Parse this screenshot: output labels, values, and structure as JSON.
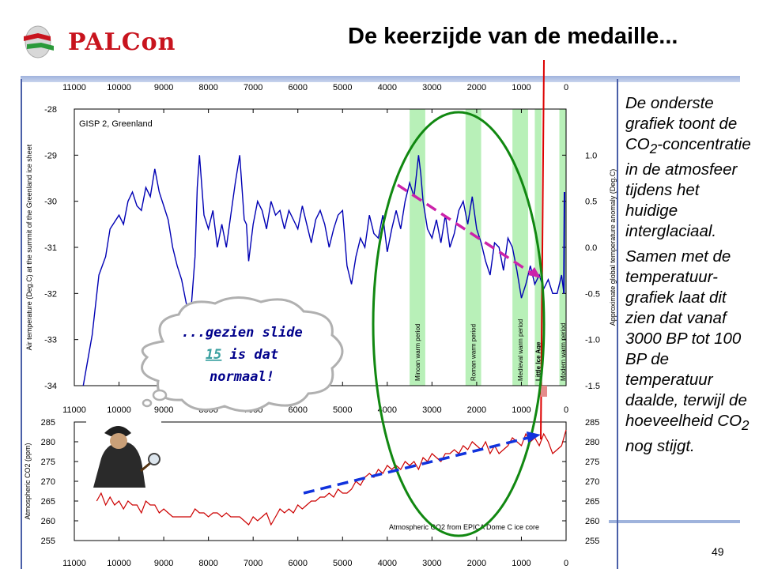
{
  "header": {
    "logo_text": "PALCon",
    "title": "De keerzijde van de medaille...",
    "page_number": "49"
  },
  "sidebar": {
    "para1_a": "De onderste grafiek toont de CO",
    "para1_sub": "2",
    "para1_b": "-concentratie in de atmosfeer tijdens het huidige interglaciaal.",
    "para2_a": "Samen met de temperatuur-grafiek laat dit zien dat vanaf 3000 BP tot 100 BP de temperatuur daalde, terwijl de hoeveelheid CO",
    "para2_sub": "2",
    "para2_b": " nog stijgt."
  },
  "cloud": {
    "line1": "...gezien slide",
    "link": "15",
    "line2_after": " is dat",
    "line3": "normaal!"
  },
  "colors": {
    "temperature_line": "#0000b4",
    "co2_line": "#cc0000",
    "warm_period_band": "#b8f0b8",
    "ellipse": "#118811",
    "temp_trend_arrow": "#cc22aa",
    "co2_trend_arrow": "#1133dd",
    "present_marker": "#dd0000"
  },
  "chart_data": [
    {
      "type": "line",
      "title": "GISP 2, Greenland",
      "xlabel": "",
      "ylabel": "Air temperature (Deg.C) at the summit of the Greenland ice sheet",
      "y2label": "Approximate global temperature anomaly (Deg.C)",
      "xlim": [
        11000,
        0
      ],
      "ylim": [
        -34,
        -28
      ],
      "y2lim": [
        -1.5,
        1.5
      ],
      "x_ticks": [
        11000,
        10000,
        9000,
        8000,
        7000,
        6000,
        5000,
        4000,
        3000,
        2000,
        1000,
        0
      ],
      "y_ticks": [
        -28,
        -29,
        -30,
        -31,
        -32,
        -33,
        -34
      ],
      "y2_ticks": [
        1.0,
        0.5,
        0.0,
        -0.5,
        -1.0,
        -1.5
      ],
      "y2_tick_labels": [
        "1.0",
        "0.5",
        "0.0",
        "-0.5",
        "-1.0",
        "-1.5"
      ],
      "grid": false,
      "bands": [
        {
          "label": "Minoan warm period",
          "from": 3500,
          "to": 3150
        },
        {
          "label": "Roman warm period",
          "from": 2250,
          "to": 1900
        },
        {
          "label": "Medieval warm period",
          "from": 1200,
          "to": 850
        },
        {
          "label": "Little Ice Age",
          "from": 700,
          "to": 550
        },
        {
          "label": "Modern warm period",
          "from": 150,
          "to": 0
        }
      ],
      "series": [
        {
          "x": [
            10800,
            10600,
            10450,
            10300,
            10200,
            10000,
            9900,
            9800,
            9700,
            9600,
            9500,
            9400,
            9300,
            9200,
            9100,
            9000,
            8900,
            8800,
            8700,
            8600,
            8500,
            8400,
            8300,
            8250,
            8200,
            8100,
            8000,
            7900,
            7800,
            7700,
            7600,
            7500,
            7400,
            7300,
            7200,
            7150,
            7100,
            7000,
            6900,
            6800,
            6700,
            6600,
            6500,
            6400,
            6300,
            6200,
            6100,
            6000,
            5900,
            5800,
            5700,
            5600,
            5500,
            5400,
            5300,
            5200,
            5100,
            5000,
            4900,
            4800,
            4700,
            4600,
            4500,
            4400,
            4300,
            4200,
            4100,
            4000,
            3900,
            3800,
            3700,
            3600,
            3500,
            3400,
            3300,
            3250,
            3200,
            3100,
            3000,
            2900,
            2800,
            2700,
            2600,
            2500,
            2400,
            2300,
            2200,
            2100,
            2000,
            1900,
            1800,
            1700,
            1600,
            1500,
            1400,
            1300,
            1200,
            1100,
            1000,
            900,
            800,
            700,
            600,
            500,
            400,
            300,
            200,
            100,
            50
          ],
          "y": [
            -34.0,
            -32.9,
            -31.6,
            -31.2,
            -30.6,
            -30.3,
            -30.5,
            -30.0,
            -29.8,
            -30.1,
            -30.2,
            -29.7,
            -29.9,
            -29.3,
            -29.8,
            -30.1,
            -30.4,
            -31.0,
            -31.4,
            -31.7,
            -32.2,
            -32.5,
            -31.2,
            -29.7,
            -29.0,
            -30.3,
            -30.6,
            -30.2,
            -31.0,
            -30.5,
            -31.0,
            -30.3,
            -29.6,
            -29.0,
            -30.4,
            -30.5,
            -31.3,
            -30.5,
            -30.0,
            -30.2,
            -30.6,
            -30.0,
            -30.3,
            -30.2,
            -30.6,
            -30.2,
            -30.4,
            -30.6,
            -30.1,
            -30.5,
            -30.9,
            -30.4,
            -30.2,
            -30.5,
            -31.0,
            -30.6,
            -30.3,
            -30.2,
            -31.4,
            -31.8,
            -31.2,
            -30.8,
            -31.0,
            -30.3,
            -30.7,
            -30.8,
            -30.3,
            -31.1,
            -30.6,
            -30.2,
            -30.6,
            -30.0,
            -29.6,
            -29.9,
            -29.0,
            -29.4,
            -30.0,
            -30.6,
            -30.8,
            -30.4,
            -30.9,
            -30.3,
            -31.0,
            -30.7,
            -30.2,
            -30.0,
            -30.5,
            -29.9,
            -30.6,
            -30.9,
            -31.3,
            -31.6,
            -30.9,
            -31.0,
            -31.5,
            -30.8,
            -31.0,
            -31.5,
            -32.1,
            -31.8,
            -31.4,
            -31.8,
            -31.6,
            -31.9,
            -31.7,
            -32.0,
            -32.0,
            -31.6,
            -32.0
          ]
        }
      ]
    },
    {
      "type": "line",
      "title": "",
      "annotation": "Atmospheric CO2 from EPICA Dome C ice core",
      "xlabel": "",
      "ylabel": "Atmospheric CO2 (ppm)",
      "xlim": [
        11000,
        0
      ],
      "ylim": [
        255,
        285
      ],
      "x_ticks": [
        11000,
        10000,
        9000,
        8000,
        7000,
        6000,
        5000,
        4000,
        3000,
        2000,
        1000,
        0
      ],
      "y_ticks": [
        285,
        280,
        275,
        270,
        265,
        260,
        255
      ],
      "grid": false,
      "series": [
        {
          "x": [
            10500,
            10400,
            10300,
            10200,
            10100,
            10000,
            9900,
            9800,
            9700,
            9600,
            9500,
            9400,
            9300,
            9200,
            9100,
            9000,
            8900,
            8800,
            8700,
            8600,
            8500,
            8400,
            8300,
            8200,
            8100,
            8000,
            7900,
            7800,
            7700,
            7600,
            7500,
            7400,
            7300,
            7200,
            7100,
            7000,
            6900,
            6800,
            6700,
            6600,
            6500,
            6400,
            6300,
            6200,
            6100,
            6000,
            5900,
            5800,
            5700,
            5600,
            5500,
            5400,
            5300,
            5200,
            5100,
            5000,
            4900,
            4800,
            4700,
            4600,
            4500,
            4400,
            4300,
            4200,
            4100,
            4000,
            3900,
            3800,
            3700,
            3600,
            3500,
            3400,
            3300,
            3200,
            3100,
            3000,
            2900,
            2800,
            2700,
            2600,
            2500,
            2400,
            2300,
            2200,
            2100,
            2000,
            1900,
            1800,
            1700,
            1600,
            1500,
            1400,
            1300,
            1200,
            1100,
            1000,
            900,
            800,
            700,
            600,
            500,
            400,
            300,
            200,
            100,
            0
          ],
          "y": [
            265,
            267,
            264,
            266,
            264,
            265,
            263,
            265,
            264,
            264,
            262,
            265,
            264,
            264,
            262,
            263,
            262,
            261,
            261,
            261,
            261,
            261,
            263,
            262,
            262,
            261,
            262,
            262,
            261,
            262,
            261,
            261,
            261,
            260,
            259,
            261,
            260,
            261,
            262,
            259,
            261,
            263,
            262,
            263,
            262,
            264,
            263,
            264,
            265,
            265,
            266,
            266,
            267,
            266,
            268,
            267,
            267,
            268,
            270,
            269,
            271,
            272,
            271,
            273,
            272,
            274,
            273,
            274,
            273,
            275,
            274,
            275,
            273,
            276,
            275,
            277,
            276,
            275,
            277,
            277,
            278,
            277,
            279,
            278,
            280,
            279,
            278,
            280,
            277,
            279,
            277,
            278,
            279,
            281,
            280,
            279,
            282,
            280,
            281,
            279,
            282,
            280,
            277,
            278,
            279,
            283
          ]
        }
      ]
    }
  ]
}
